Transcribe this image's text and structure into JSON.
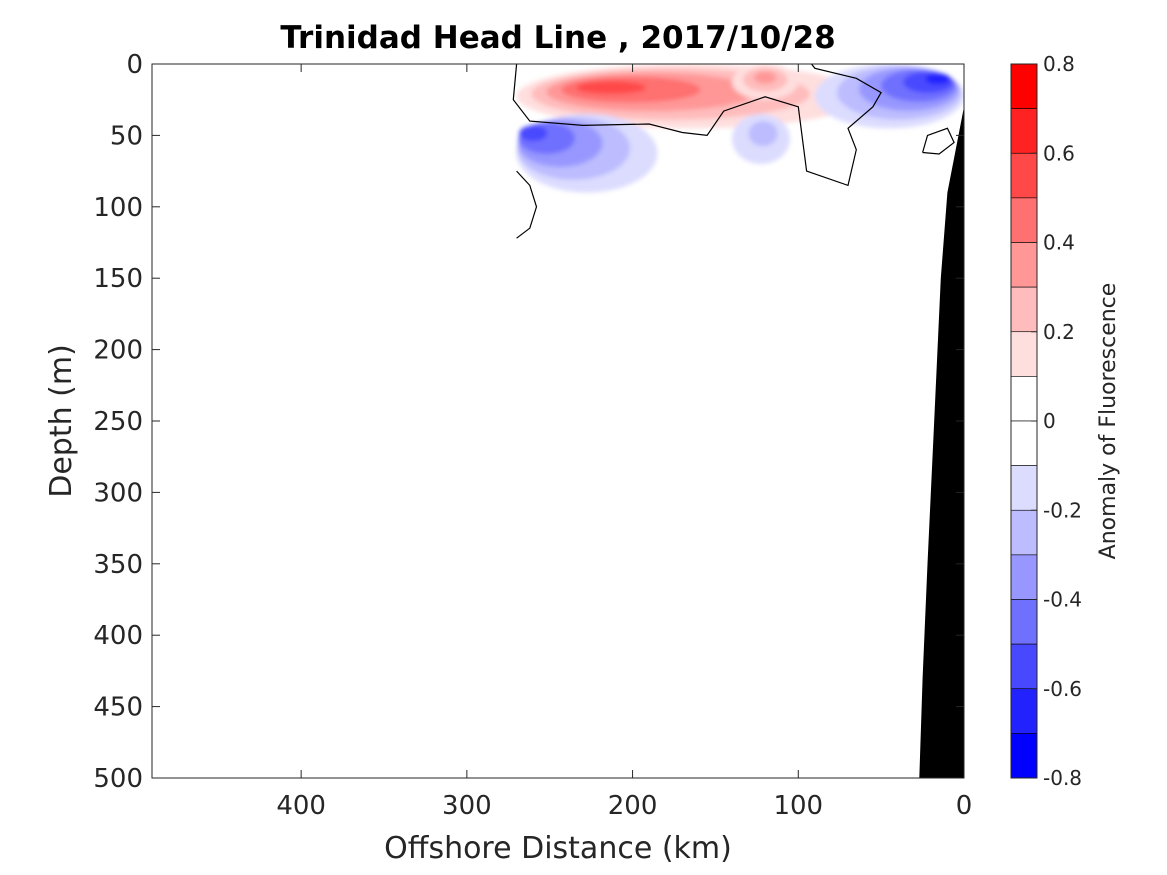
{
  "chart_data": {
    "type": "heatmap",
    "subtype": "filled-contour section",
    "title": "Trinidad Head Line , 2017/10/28",
    "xlabel": "Offshore Distance (km)",
    "ylabel": "Depth (m)",
    "x_direction": "reversed",
    "y_direction": "reversed",
    "xlim": [
      0,
      490
    ],
    "ylim": [
      0,
      500
    ],
    "x_ticks": [
      400,
      300,
      200,
      100,
      0
    ],
    "y_ticks": [
      0,
      50,
      100,
      150,
      200,
      250,
      300,
      350,
      400,
      450,
      500
    ],
    "grid": false,
    "colorbar": {
      "label": "Anomaly of Fluorescence",
      "range": [
        -0.8,
        0.8
      ],
      "tick_values": [
        0.8,
        0.6,
        0.4,
        0.2,
        0,
        -0.2,
        -0.4,
        -0.6,
        -0.8
      ],
      "tick_labels": [
        "0.8",
        "0.6",
        "0.4",
        "0.2",
        "0",
        "-0.2",
        "-0.4",
        "-0.6",
        "-0.8"
      ],
      "levels": [
        -0.8,
        -0.7,
        -0.6,
        -0.5,
        -0.4,
        -0.3,
        -0.2,
        -0.1,
        0,
        0.1,
        0.2,
        0.3,
        0.4,
        0.5,
        0.6,
        0.7,
        0.8
      ],
      "colors": [
        "#ff0000",
        "#ff2222",
        "#ff4848",
        "#ff7070",
        "#ff9797",
        "#ffbcbc",
        "#ffdede",
        "#ffffff",
        "#ffffff",
        "#dcdcff",
        "#bcbcff",
        "#9797ff",
        "#7070ff",
        "#4848ff",
        "#2222ff",
        "#0000ff"
      ]
    },
    "anomaly_regions": [
      {
        "name": "surface-positive-band",
        "sign": "positive",
        "x_range": [
          270,
          60
        ],
        "depth_range": [
          0,
          45
        ],
        "peak_value": 0.6,
        "peak_x": 225,
        "peak_depth": 15
      },
      {
        "name": "positive-core-120km",
        "sign": "positive",
        "x_range": [
          140,
          100
        ],
        "depth_range": [
          0,
          25
        ],
        "peak_value": 0.4,
        "peak_x": 120,
        "peak_depth": 8
      },
      {
        "name": "subsurface-negative-band",
        "sign": "negative",
        "x_range": [
          270,
          185
        ],
        "depth_range": [
          35,
          90
        ],
        "peak_value": -0.6,
        "peak_x": 268,
        "peak_depth": 45
      },
      {
        "name": "negative-patch-120km",
        "sign": "negative",
        "x_range": [
          140,
          105
        ],
        "depth_range": [
          35,
          70
        ],
        "peak_value": -0.3,
        "peak_x": 120,
        "peak_depth": 45
      },
      {
        "name": "nearshore-negative",
        "sign": "negative",
        "x_range": [
          90,
          0
        ],
        "depth_range": [
          0,
          45
        ],
        "peak_value": -0.7,
        "peak_x": 10,
        "peak_depth": 8
      }
    ],
    "zero_contours": [
      {
        "name": "main-zero-contour",
        "points": [
          [
            270,
            0
          ],
          [
            272,
            25
          ],
          [
            262,
            40
          ],
          [
            230,
            43
          ],
          [
            190,
            42
          ],
          [
            170,
            48
          ],
          [
            155,
            50
          ],
          [
            145,
            33
          ],
          [
            120,
            23
          ],
          [
            100,
            30
          ],
          [
            95,
            75
          ],
          [
            70,
            85
          ],
          [
            65,
            60
          ],
          [
            70,
            45
          ],
          [
            55,
            30
          ],
          [
            50,
            20
          ],
          [
            65,
            10
          ],
          [
            90,
            3
          ],
          [
            92,
            0
          ]
        ]
      },
      {
        "name": "offshore-zero-contour",
        "points": [
          [
            270,
            75
          ],
          [
            262,
            85
          ],
          [
            258,
            100
          ],
          [
            262,
            115
          ],
          [
            270,
            122
          ]
        ]
      },
      {
        "name": "nearshore-zero-loop",
        "points": [
          [
            25,
            62
          ],
          [
            22,
            50
          ],
          [
            10,
            45
          ],
          [
            6,
            55
          ],
          [
            15,
            63
          ],
          [
            25,
            62
          ]
        ]
      }
    ],
    "bathymetry": {
      "fill_color": "#000000",
      "profile": [
        [
          0,
          30
        ],
        [
          5,
          60
        ],
        [
          10,
          90
        ],
        [
          14,
          150
        ],
        [
          18,
          250
        ],
        [
          22,
          350
        ],
        [
          25,
          430
        ],
        [
          27,
          500
        ]
      ]
    }
  }
}
